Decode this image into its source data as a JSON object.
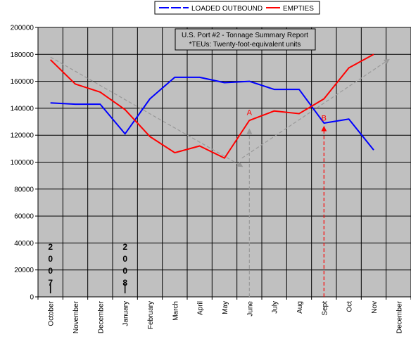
{
  "chart_data": {
    "type": "line",
    "title_lines": [
      "U.S. Port #2 - Tonnage Summary Report",
      "*TEUs: Twenty-foot-equivalent units"
    ],
    "categories": [
      "October",
      "November",
      "December",
      "January",
      "February",
      "March",
      "April",
      "May",
      "June",
      "July",
      "Aug",
      "Sept",
      "Oct",
      "Nov",
      "December"
    ],
    "ylim": [
      0,
      200000
    ],
    "yticks": [
      0,
      20000,
      40000,
      60000,
      80000,
      100000,
      120000,
      140000,
      160000,
      180000,
      200000
    ],
    "grid": true,
    "legend_position": "top",
    "series": [
      {
        "name": "LOADED OUTBOUND",
        "color": "#0000ff",
        "values": [
          144000,
          143000,
          143000,
          121000,
          147000,
          163000,
          163000,
          159000,
          160000,
          154000,
          154000,
          129000,
          132000,
          109000,
          null
        ]
      },
      {
        "name": "EMPTIES",
        "color": "#ff0000",
        "values": [
          176000,
          158000,
          152000,
          139000,
          119000,
          107000,
          112000,
          103000,
          131000,
          138000,
          136000,
          147000,
          170000,
          180000,
          null
        ]
      }
    ],
    "trend_lines": [
      {
        "color": "#999999",
        "from": [
          0,
          178000
        ],
        "to": [
          7.7,
          97000
        ]
      },
      {
        "color": "#999999",
        "from": [
          7.7,
          103000
        ],
        "to": [
          13.6,
          176000
        ]
      }
    ],
    "annotations": [
      {
        "label": "A",
        "color": "#ff0000",
        "x": 8,
        "y": 137000,
        "arrow_color": "#999999",
        "arrow_from": 0,
        "arrow_to": 124000
      },
      {
        "label": "B",
        "color": "#ff0000",
        "x": 11,
        "y": 133000,
        "arrow_color": "#ff0000",
        "arrow_from": 0,
        "arrow_to": 126000
      }
    ],
    "year_labels": [
      {
        "chars": [
          "2",
          "0",
          "0",
          "7"
        ],
        "x": 0
      },
      {
        "chars": [
          "2",
          "0",
          "0",
          "8"
        ],
        "x": 3
      }
    ]
  }
}
